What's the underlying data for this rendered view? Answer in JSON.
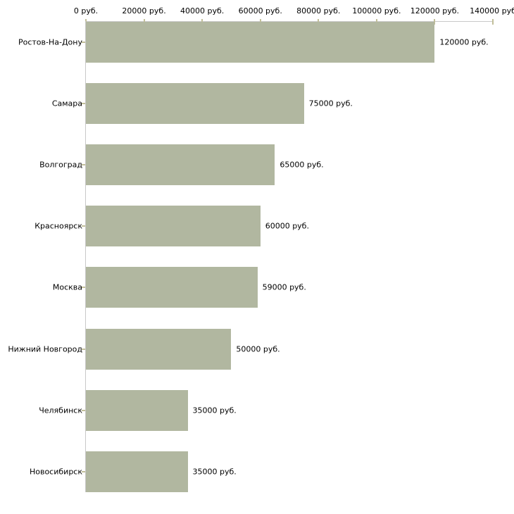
{
  "chart_data": {
    "type": "bar",
    "orientation": "horizontal",
    "title": "",
    "xlabel": "",
    "ylabel": "",
    "categories": [
      "Ростов-На-Дону",
      "Самара",
      "Волгоград",
      "Красноярск",
      "Москва",
      "Нижний Новгород",
      "Челябинск",
      "Новосибирск"
    ],
    "values": [
      120000,
      75000,
      65000,
      60000,
      59000,
      50000,
      35000,
      35000
    ],
    "value_labels": [
      "120000 руб.",
      "75000 руб.",
      "65000 руб.",
      "60000 руб.",
      "59000 руб.",
      "50000 руб.",
      "35000 руб.",
      "35000 руб."
    ],
    "x_axis": {
      "ticks": [
        0,
        20000,
        40000,
        60000,
        80000,
        100000,
        120000,
        140000
      ],
      "tick_labels": [
        "0 руб.",
        "20000 руб.",
        "40000 руб.",
        "60000 руб.",
        "80000 руб.",
        "100000 руб.",
        "120000 руб.",
        "140000 руб"
      ],
      "min": 0,
      "max": 140000,
      "position": "top"
    },
    "legend": null,
    "grid": false,
    "colors": {
      "bar_fill": "#b1b7a0",
      "axis_line": "#c9c9c9",
      "tick_mark": "#c2bf9a",
      "text": "#000000",
      "background": "#ffffff"
    }
  }
}
